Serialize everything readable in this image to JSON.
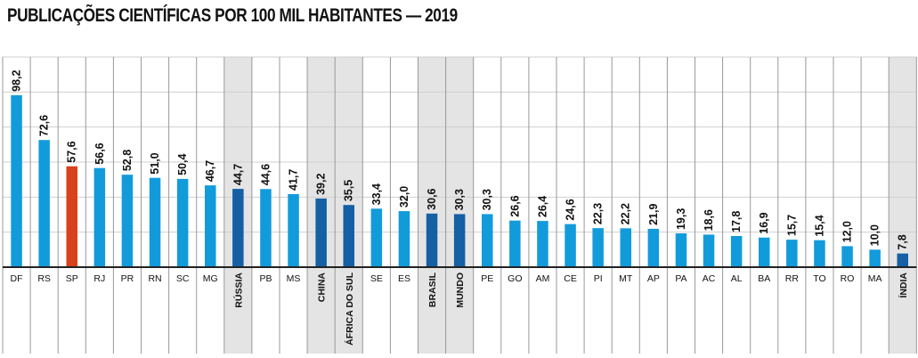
{
  "chart_data": {
    "type": "bar",
    "title": "PUBLICAÇÕES CIENTÍFICAS POR 100 MIL HABITANTES — 2019",
    "xlabel": "",
    "ylabel": "",
    "ylim": [
      0,
      120
    ],
    "grid": true,
    "categories": [
      "DF",
      "RS",
      "SP",
      "RJ",
      "PR",
      "RN",
      "SC",
      "MG",
      "RÚSSIA",
      "PB",
      "MS",
      "CHINA",
      "ÁFRICA DO SUL",
      "SE",
      "ES",
      "BRASIL",
      "MUNDO",
      "PE",
      "GO",
      "AM",
      "CE",
      "PI",
      "MT",
      "AP",
      "PA",
      "AC",
      "AL",
      "BA",
      "RR",
      "TO",
      "RO",
      "MA",
      "ÍNDIA"
    ],
    "values": [
      98.2,
      72.6,
      57.6,
      56.6,
      52.8,
      51.0,
      50.4,
      46.7,
      44.7,
      44.6,
      41.7,
      39.2,
      35.5,
      33.4,
      32.0,
      30.6,
      30.3,
      30.3,
      26.6,
      26.4,
      24.6,
      22.3,
      22.2,
      21.9,
      19.3,
      18.6,
      17.8,
      16.9,
      15.7,
      15.4,
      12.0,
      10.0,
      7.8
    ],
    "value_labels": [
      "98,2",
      "72,6",
      "57,6",
      "56,6",
      "52,8",
      "51,0",
      "50,4",
      "46,7",
      "44,7",
      "44,6",
      "41,7",
      "39,2",
      "35,5",
      "33,4",
      "32,0",
      "30,6",
      "30,3",
      "30,3",
      "26,6",
      "26,4",
      "24,6",
      "22,3",
      "22,2",
      "21,9",
      "19,3",
      "18,6",
      "17,8",
      "16,9",
      "15,7",
      "15,4",
      "12,0",
      "10,0",
      "7,8"
    ],
    "highlighted": [
      "RÚSSIA",
      "CHINA",
      "ÁFRICA DO SUL",
      "BRASIL",
      "MUNDO",
      "ÍNDIA"
    ],
    "emphasized": [
      "SP"
    ],
    "colors": {
      "state_bar": "#129BDB",
      "comparison_bar": "#1560A4",
      "emphasis_bar": "#D9401C",
      "comparison_column_bg": "#E4E4E4",
      "grid": "#CFCFCF",
      "divider": "#999999",
      "axis": "#222222",
      "text": "#111111"
    }
  }
}
